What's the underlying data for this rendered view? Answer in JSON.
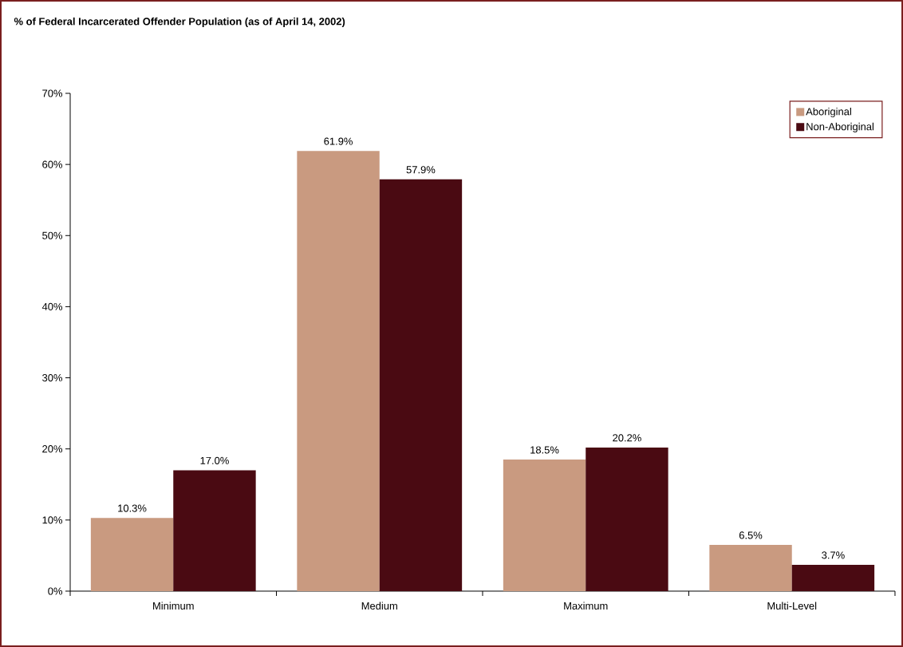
{
  "chart_data": {
    "type": "bar",
    "title": "**% of Federal Incarcerated Offender Population (as of April 14, 2002)**",
    "categories": [
      "Minimum",
      "Medium",
      "Maximum",
      "Multi-Level"
    ],
    "series": [
      {
        "name": "Aboriginal",
        "color": "#c99a80",
        "values": [
          10.3,
          61.9,
          18.5,
          6.5
        ],
        "value_labels": [
          "10.3%",
          "61.9%",
          "18.5%",
          "6.5%"
        ]
      },
      {
        "name": "Non-Aboriginal",
        "color": "#4a0a12",
        "values": [
          17.0,
          57.9,
          20.2,
          3.7
        ],
        "value_labels": [
          "17.0%",
          "57.9%",
          "20.2%",
          "3.7%"
        ]
      }
    ],
    "ylim": [
      0,
      70
    ],
    "yticks": [
      {
        "value": 0,
        "label": "0%"
      },
      {
        "value": 10,
        "label": "10%"
      },
      {
        "value": 20,
        "label": "20%"
      },
      {
        "value": 30,
        "label": "30%"
      },
      {
        "value": 40,
        "label": "40%"
      },
      {
        "value": 50,
        "label": "50%"
      },
      {
        "value": 60,
        "label": "60%"
      },
      {
        "value": 70,
        "label": "70%"
      }
    ],
    "legend": "top right"
  }
}
